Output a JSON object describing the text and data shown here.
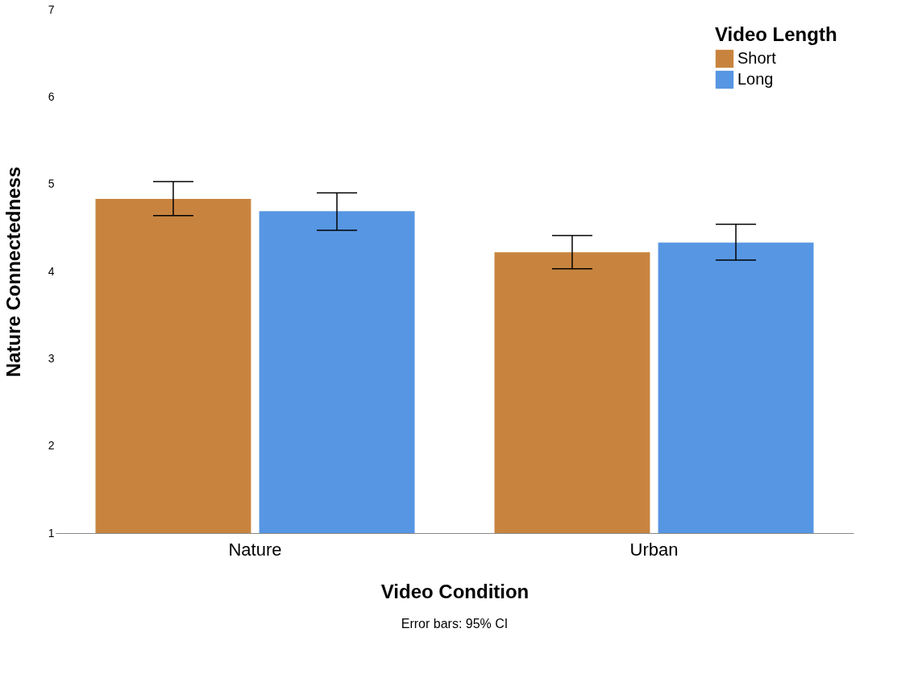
{
  "chart_data": {
    "type": "bar",
    "categories": [
      "Nature",
      "Urban"
    ],
    "series": [
      {
        "name": "Short",
        "color": "#c8843f",
        "values": [
          4.83,
          4.22
        ],
        "errors": [
          [
            4.64,
            5.03
          ],
          [
            4.03,
            4.41
          ]
        ]
      },
      {
        "name": "Long",
        "color": "#5796e3",
        "values": [
          4.69,
          4.33
        ],
        "errors": [
          [
            4.47,
            4.9
          ],
          [
            4.13,
            4.54
          ]
        ]
      }
    ],
    "xlabel": "Video Condition",
    "ylabel": "Nature Connectedness",
    "legend_title": "Video Length",
    "ylim": [
      1,
      7
    ],
    "yticks": [
      1,
      2,
      3,
      4,
      5,
      6,
      7
    ],
    "grid": false,
    "legend": "top right",
    "annotations": [
      "Error bars: 95% CI"
    ]
  }
}
